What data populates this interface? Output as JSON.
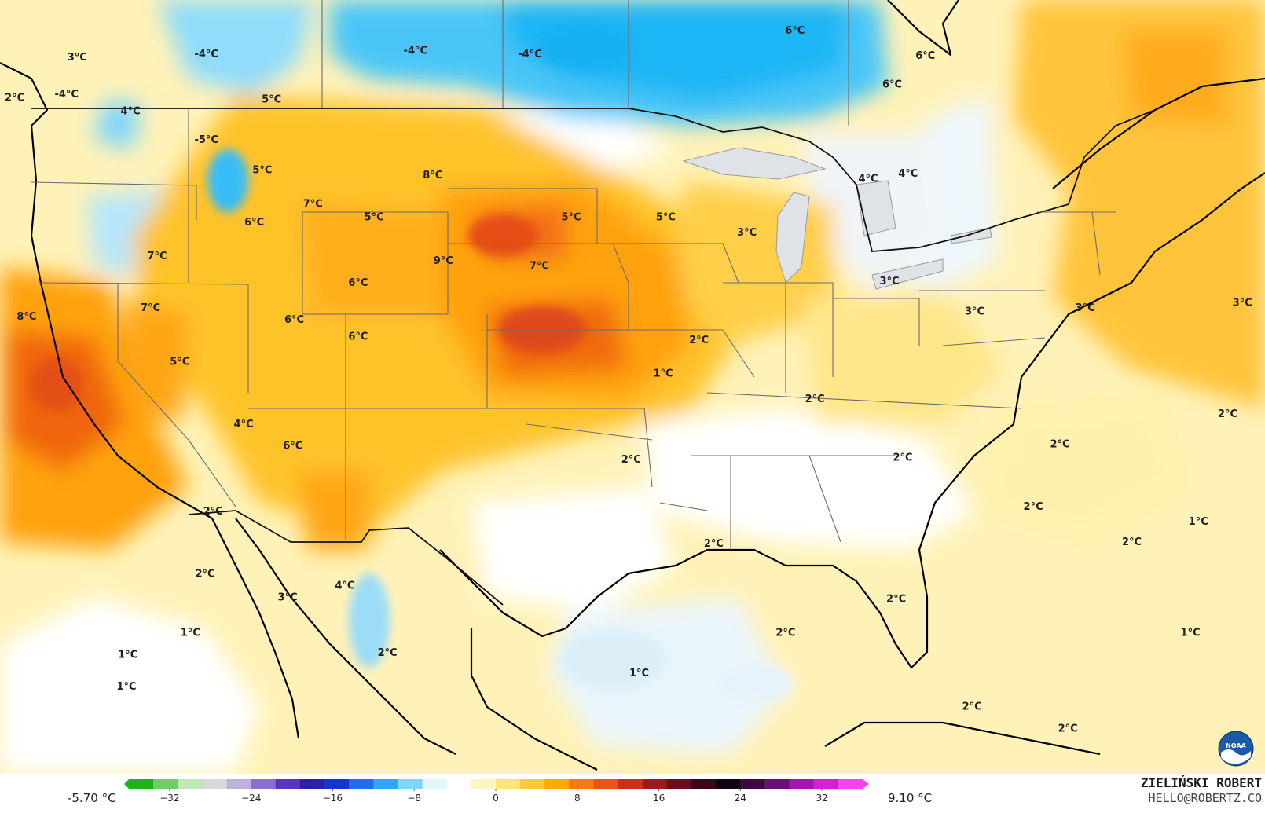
{
  "map": {
    "labels": [
      {
        "text": "3°C",
        "lon": -124.2,
        "lat": 49.4
      },
      {
        "text": "-4°C",
        "lon": -114.5,
        "lat": 49.6
      },
      {
        "text": "-4°C",
        "lon": -98.8,
        "lat": 49.8
      },
      {
        "text": "-4°C",
        "lon": -90.2,
        "lat": 49.6
      },
      {
        "text": "6°C",
        "lon": -70.3,
        "lat": 51.0
      },
      {
        "text": "6°C",
        "lon": -60.5,
        "lat": 49.5
      },
      {
        "text": "-4°C",
        "lon": -125.0,
        "lat": 47.2
      },
      {
        "text": "6°C",
        "lon": -63.0,
        "lat": 47.8
      },
      {
        "text": "2°C",
        "lon": -128.9,
        "lat": 47.0
      },
      {
        "text": "5°C",
        "lon": -109.6,
        "lat": 46.9
      },
      {
        "text": "4°C",
        "lon": -120.2,
        "lat": 46.2
      },
      {
        "text": "-5°C",
        "lon": -114.5,
        "lat": 44.5
      },
      {
        "text": "5°C",
        "lon": -110.3,
        "lat": 42.7
      },
      {
        "text": "8°C",
        "lon": -97.5,
        "lat": 42.4
      },
      {
        "text": "4°C",
        "lon": -61.8,
        "lat": 42.5
      },
      {
        "text": "4°C",
        "lon": -64.8,
        "lat": 42.2
      },
      {
        "text": "7°C",
        "lon": -106.5,
        "lat": 40.7
      },
      {
        "text": "5°C",
        "lon": -101.9,
        "lat": 39.9
      },
      {
        "text": "6°C",
        "lon": -110.9,
        "lat": 39.6
      },
      {
        "text": "5°C",
        "lon": -87.1,
        "lat": 39.9
      },
      {
        "text": "5°C",
        "lon": -80.0,
        "lat": 39.9
      },
      {
        "text": "3°C",
        "lon": -73.9,
        "lat": 39.0
      },
      {
        "text": "7°C",
        "lon": -118.2,
        "lat": 37.6
      },
      {
        "text": "9°C",
        "lon": -96.7,
        "lat": 37.3
      },
      {
        "text": "7°C",
        "lon": -89.5,
        "lat": 37.0
      },
      {
        "text": "3°C",
        "lon": -63.2,
        "lat": 36.1
      },
      {
        "text": "6°C",
        "lon": -103.1,
        "lat": 36.0
      },
      {
        "text": "7°C",
        "lon": -118.7,
        "lat": 34.5
      },
      {
        "text": "8°C",
        "lon": -128.0,
        "lat": 34.0
      },
      {
        "text": "6°C",
        "lon": -107.9,
        "lat": 33.8
      },
      {
        "text": "6°C",
        "lon": -103.1,
        "lat": 32.8
      },
      {
        "text": "3°C",
        "lon": -56.8,
        "lat": 34.3
      },
      {
        "text": "3°C",
        "lon": -48.5,
        "lat": 34.5
      },
      {
        "text": "3°C",
        "lon": -36.7,
        "lat": 34.8
      },
      {
        "text": "2°C",
        "lon": -77.5,
        "lat": 32.6
      },
      {
        "text": "5°C",
        "lon": -116.5,
        "lat": 31.3
      },
      {
        "text": "1°C",
        "lon": -80.2,
        "lat": 30.6
      },
      {
        "text": "2°C",
        "lon": -68.8,
        "lat": 29.1
      },
      {
        "text": "2°C",
        "lon": -37.8,
        "lat": 28.2
      },
      {
        "text": "4°C",
        "lon": -111.7,
        "lat": 27.6
      },
      {
        "text": "6°C",
        "lon": -108.0,
        "lat": 26.3
      },
      {
        "text": "2°C",
        "lon": -50.4,
        "lat": 26.4
      },
      {
        "text": "2°C",
        "lon": -82.6,
        "lat": 25.5
      },
      {
        "text": "2°C",
        "lon": -62.2,
        "lat": 25.6
      },
      {
        "text": "2°C",
        "lon": -114.0,
        "lat": 22.4
      },
      {
        "text": "2°C",
        "lon": -52.4,
        "lat": 22.7
      },
      {
        "text": "1°C",
        "lon": -40.0,
        "lat": 21.8
      },
      {
        "text": "2°C",
        "lon": -45.0,
        "lat": 20.6
      },
      {
        "text": "2°C",
        "lon": -114.6,
        "lat": 18.7
      },
      {
        "text": "3°C",
        "lon": -108.4,
        "lat": 17.3
      },
      {
        "text": "4°C",
        "lon": -104.1,
        "lat": 18.0
      },
      {
        "text": "2°C",
        "lon": -76.4,
        "lat": 20.5
      },
      {
        "text": "2°C",
        "lon": -62.7,
        "lat": 17.2
      },
      {
        "text": "1°C",
        "lon": -115.7,
        "lat": 15.2
      },
      {
        "text": "2°C",
        "lon": -71.0,
        "lat": 15.2
      },
      {
        "text": "1°C",
        "lon": -40.6,
        "lat": 15.2
      },
      {
        "text": "1°C",
        "lon": -120.4,
        "lat": 13.9
      },
      {
        "text": "2°C",
        "lon": -100.9,
        "lat": 14.0
      },
      {
        "text": "1°C",
        "lon": -82.0,
        "lat": 12.8
      },
      {
        "text": "1°C",
        "lon": -120.5,
        "lat": 12.0
      },
      {
        "text": "2°C",
        "lon": -57.0,
        "lat": 10.8
      },
      {
        "text": "2°C",
        "lon": -49.8,
        "lat": 9.5
      }
    ]
  },
  "legend": {
    "min_value": "-5.70 °C",
    "max_value": "9.10 °C",
    "ticks": [
      "−32",
      "−24",
      "−16",
      "−8",
      "0",
      "8",
      "16",
      "24",
      "32"
    ],
    "tick_values": [
      -32,
      -24,
      -16,
      -8,
      0,
      8,
      16,
      24,
      32
    ],
    "range": [
      -36,
      36
    ],
    "colors": [
      "#1db31d",
      "#72cc66",
      "#bfe7b6",
      "#d9d9d9",
      "#bdb2d9",
      "#8b6fcf",
      "#5a34c0",
      "#2d1fa8",
      "#1634d0",
      "#1d6ef2",
      "#2fa6f7",
      "#7fd6fb",
      "#e4f6fd",
      "#ffffff",
      "#fff5c2",
      "#ffe57a",
      "#ffc93a",
      "#ffaa00",
      "#f77a0c",
      "#ea5418",
      "#cc2e1a",
      "#9c1a1a",
      "#6a0d1f",
      "#3a0514",
      "#110010",
      "#3b0a3f",
      "#6a0f7a",
      "#a515b2",
      "#d41fd6",
      "#f541ef"
    ]
  },
  "credit": {
    "name": "ZIELIŃSKI ROBERT",
    "email": "HELLO@ROBERTZ.CO"
  },
  "logo": {
    "text": "NOAA",
    "icon": "noaa-logo"
  }
}
